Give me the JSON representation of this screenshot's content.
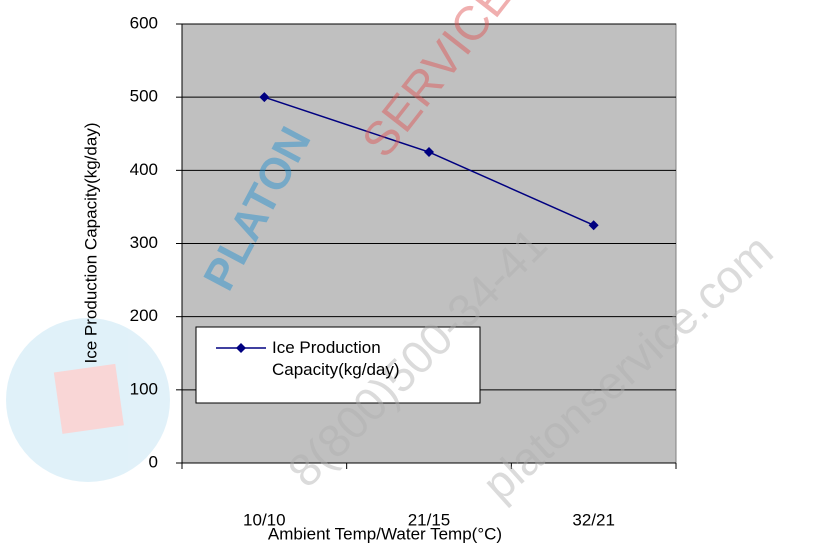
{
  "chart_data": {
    "type": "line",
    "x_label": "Ambient Temp/Water Temp(°C)",
    "y_label": "Ice Production Capacity(kg/day)",
    "categories": [
      "10/10",
      "21/15",
      "32/21"
    ],
    "series": [
      {
        "name": "Ice Production Capacity(kg/day)",
        "color": "#000080",
        "values": [
          500,
          425,
          325
        ]
      }
    ],
    "ylim": [
      0,
      600
    ],
    "yticks": [
      0,
      100,
      200,
      300,
      400,
      500,
      600
    ],
    "grid": true,
    "plot_background": "#c0c0c0",
    "legend": "lower left",
    "watermarks": [
      "PLATON",
      "SERVICE",
      "8(800)500-34-41",
      "platonservice.com"
    ]
  }
}
